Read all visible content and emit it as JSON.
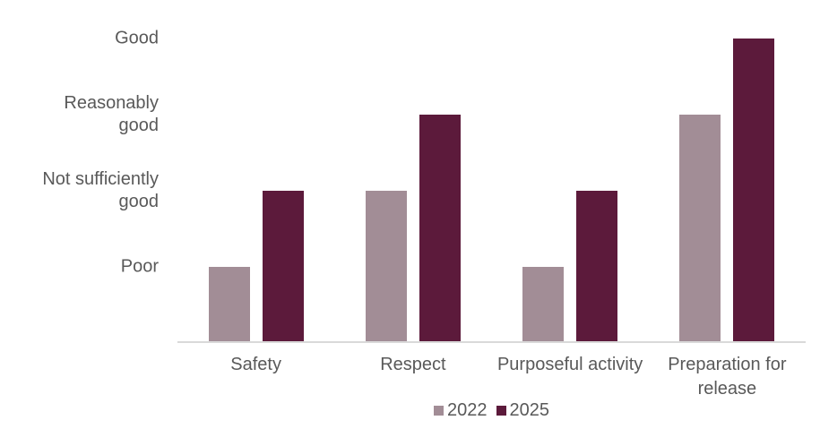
{
  "chart_data": {
    "type": "bar",
    "title": "",
    "categories": [
      "Safety",
      "Respect",
      "Purposeful activity",
      "Preparation for release"
    ],
    "series": [
      {
        "name": "2022",
        "color": "#a28d96",
        "values": [
          1,
          2,
          1,
          3
        ]
      },
      {
        "name": "2025",
        "color": "#5c1a3b",
        "values": [
          2,
          3,
          2,
          4
        ]
      }
    ],
    "value_axis": {
      "tick_values": [
        1,
        2,
        3,
        4
      ],
      "tick_labels": [
        "Poor",
        "Not sufficiently good",
        "Reasonably good",
        "Good"
      ],
      "range": [
        0,
        4
      ]
    },
    "legend": {
      "position": "bottom",
      "entries": [
        "2022",
        "2025"
      ]
    },
    "grid": false,
    "styles": {
      "background": "#ffffff",
      "text_color": "#595959",
      "axis_line_color": "#d9d9d9",
      "series_2022_color": "#a28d96",
      "series_2025_color": "#5c1a3b"
    }
  }
}
